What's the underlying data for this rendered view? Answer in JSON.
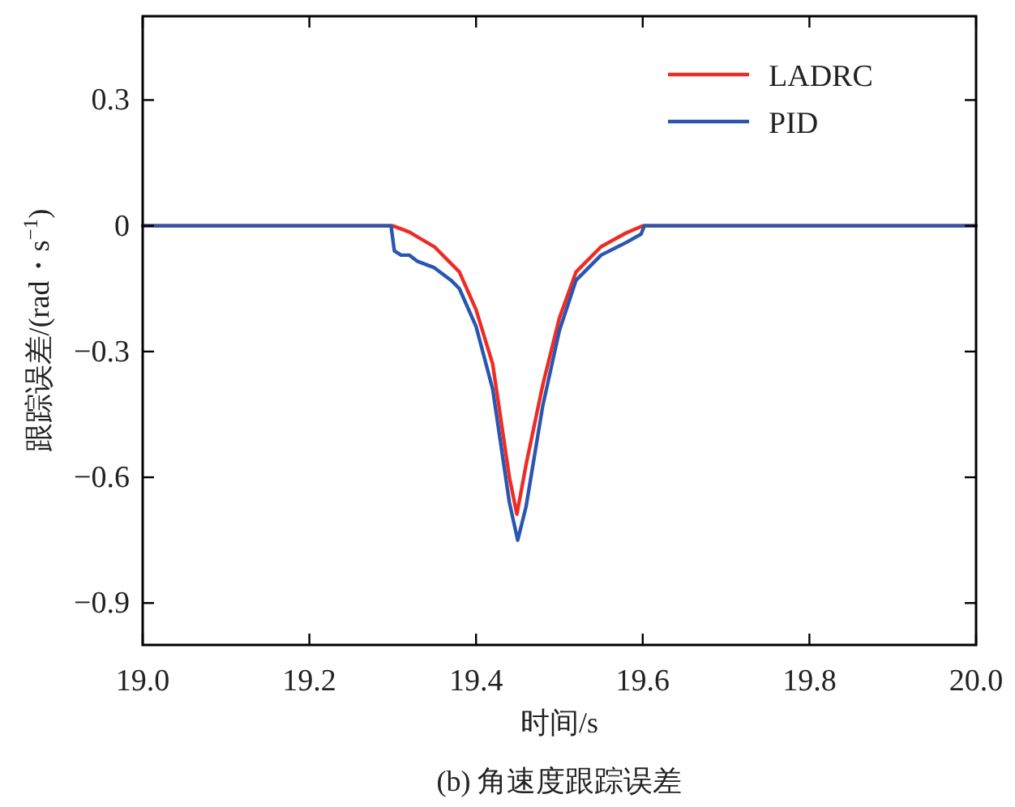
{
  "chart_data": {
    "type": "line",
    "xlabel": "时间/s",
    "ylabel": "跟踪误差/(rad・s$^{−1}$)",
    "annotations": [
      "(b) 角速度跟踪误差"
    ],
    "xlim": [
      19.0,
      20.0
    ],
    "ylim": [
      -1.0,
      0.5
    ],
    "xticks": [
      {
        "value": 19.0,
        "label": "19.0"
      },
      19.2,
      19.4,
      19.6,
      19.8,
      {
        "value": 20.0,
        "label": "20.0"
      }
    ],
    "yticks": [
      0.3,
      0,
      {
        "value": -0.3,
        "label": "−0.3"
      },
      {
        "value": -0.6,
        "label": "−0.6"
      },
      {
        "value": -0.9,
        "label": "−0.9"
      }
    ],
    "legend": "top right",
    "series": [
      {
        "name": "LADRC",
        "color": "#ee2b24",
        "x": [
          19.0,
          19.3,
          19.32,
          19.35,
          19.38,
          19.4,
          19.42,
          19.44,
          19.449,
          19.46,
          19.48,
          19.5,
          19.52,
          19.55,
          19.58,
          19.6,
          20.0
        ],
        "values": [
          0,
          0,
          -0.015,
          -0.05,
          -0.11,
          -0.2,
          -0.33,
          -0.6,
          -0.688,
          -0.57,
          -0.38,
          -0.22,
          -0.11,
          -0.05,
          -0.017,
          0,
          0
        ]
      },
      {
        "name": "PID",
        "color": "#2a56b0",
        "x": [
          19.0,
          19.298,
          19.302,
          19.31,
          19.32,
          19.33,
          19.35,
          19.37,
          19.38,
          19.4,
          19.42,
          19.44,
          19.45,
          19.46,
          19.48,
          19.5,
          19.52,
          19.55,
          19.58,
          19.598,
          19.602,
          20.0
        ],
        "values": [
          0,
          0,
          -0.06,
          -0.07,
          -0.07,
          -0.085,
          -0.1,
          -0.13,
          -0.15,
          -0.24,
          -0.39,
          -0.66,
          -0.75,
          -0.67,
          -0.43,
          -0.25,
          -0.13,
          -0.07,
          -0.04,
          -0.02,
          0,
          0
        ]
      }
    ]
  }
}
